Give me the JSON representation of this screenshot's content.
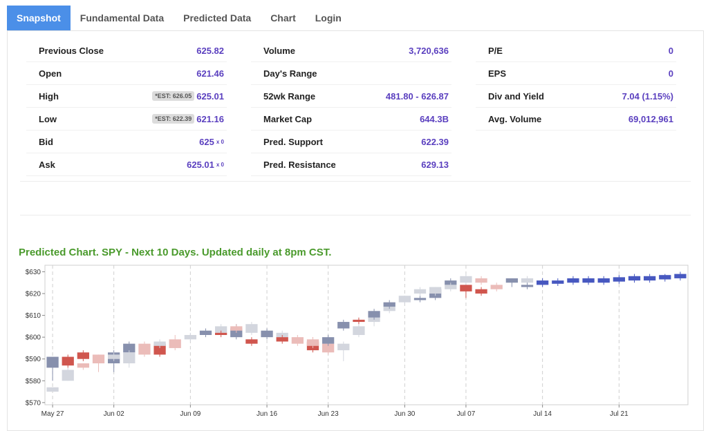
{
  "tabs": [
    {
      "label": "Snapshot",
      "active": true
    },
    {
      "label": "Fundamental Data",
      "active": false
    },
    {
      "label": "Predicted Data",
      "active": false
    },
    {
      "label": "Chart",
      "active": false
    },
    {
      "label": "Login",
      "active": false
    }
  ],
  "stats": {
    "col1": [
      {
        "label": "Previous Close",
        "value": "625.82"
      },
      {
        "label": "Open",
        "value": "621.46"
      },
      {
        "label": "High",
        "value": "625.01",
        "est": "*EST: 626.05"
      },
      {
        "label": "Low",
        "value": "621.16",
        "est": "*EST: 622.39"
      },
      {
        "label": "Bid",
        "value": "625",
        "mult": "x 0"
      },
      {
        "label": "Ask",
        "value": "625.01",
        "mult": "x 0"
      }
    ],
    "col2": [
      {
        "label": "Volume",
        "value": "3,720,636"
      },
      {
        "label": "Day's Range",
        "value": ""
      },
      {
        "label": "52wk Range",
        "value": "481.80 - 626.87"
      },
      {
        "label": "Market Cap",
        "value": "644.3B"
      },
      {
        "label": "Pred. Support",
        "value": "622.39"
      },
      {
        "label": "Pred. Resistance",
        "value": "629.13"
      }
    ],
    "col3": [
      {
        "label": "P/E",
        "value": "0"
      },
      {
        "label": "EPS",
        "value": "0"
      },
      {
        "label": "Div and Yield",
        "value": "7.04 (1.15%)"
      },
      {
        "label": "Avg. Volume",
        "value": "69,012,961"
      }
    ]
  },
  "chart_title": "Predicted Chart. SPY - Next 10 Days. Updated daily at 8pm CST.",
  "chart_data": {
    "type": "candlestick",
    "y_ticks": [
      "$630",
      "$620",
      "$610",
      "$600",
      "$590",
      "$580",
      "$570"
    ],
    "y_tick_values": [
      630,
      620,
      610,
      600,
      590,
      580,
      570
    ],
    "ylim": [
      569,
      633
    ],
    "x_tick_labels": [
      "May 27",
      "Jun 02",
      "Jun 09",
      "Jun 16",
      "Jun 23",
      "Jun 30",
      "Jul 07",
      "Jul 14",
      "Jul 21"
    ],
    "x_tick_index": [
      0,
      4,
      9,
      14,
      18,
      23,
      27,
      32,
      37
    ],
    "total_slots": 42,
    "colors": {
      "actual_up": "#8790ad",
      "actual_down": "#d0564e",
      "pred_up": "#d3d6de",
      "pred_down": "#ebbcb9",
      "forecast": "#4758c0"
    },
    "candles": [
      {
        "i": 0,
        "kind": "pred",
        "o": 575,
        "c": 577,
        "h": 577,
        "l": 575
      },
      {
        "i": 0,
        "kind": "actual",
        "o": 586,
        "c": 591,
        "h": 591,
        "l": 580
      },
      {
        "i": 1,
        "kind": "pred",
        "o": 580,
        "c": 585,
        "h": 586,
        "l": 580
      },
      {
        "i": 1,
        "kind": "actual",
        "o": 591,
        "c": 587,
        "h": 592,
        "l": 586
      },
      {
        "i": 2,
        "kind": "pred",
        "o": 588,
        "c": 586,
        "h": 588,
        "l": 585
      },
      {
        "i": 2,
        "kind": "actual",
        "o": 593,
        "c": 590,
        "h": 594,
        "l": 589
      },
      {
        "i": 3,
        "kind": "pred",
        "o": 592,
        "c": 588,
        "h": 592,
        "l": 584
      },
      {
        "i": 4,
        "kind": "actual",
        "o": 588,
        "c": 593,
        "h": 594,
        "l": 584
      },
      {
        "i": 4,
        "kind": "pred",
        "o": 590,
        "c": 592,
        "h": 593,
        "l": 589
      },
      {
        "i": 5,
        "kind": "actual",
        "o": 593,
        "c": 597,
        "h": 598,
        "l": 592
      },
      {
        "i": 5,
        "kind": "pred",
        "o": 588,
        "c": 593,
        "h": 594,
        "l": 586
      },
      {
        "i": 6,
        "kind": "pred",
        "o": 597,
        "c": 592,
        "h": 598,
        "l": 591
      },
      {
        "i": 7,
        "kind": "actual",
        "o": 597,
        "c": 592,
        "h": 598,
        "l": 591
      },
      {
        "i": 7,
        "kind": "pred",
        "o": 596,
        "c": 598,
        "h": 599,
        "l": 595
      },
      {
        "i": 8,
        "kind": "pred",
        "o": 599,
        "c": 595,
        "h": 601,
        "l": 594
      },
      {
        "i": 9,
        "kind": "pred",
        "o": 599,
        "c": 601,
        "h": 602,
        "l": 598
      },
      {
        "i": 10,
        "kind": "actual",
        "o": 601,
        "c": 603,
        "h": 604,
        "l": 600
      },
      {
        "i": 11,
        "kind": "pred",
        "o": 602,
        "c": 605,
        "h": 606,
        "l": 601
      },
      {
        "i": 11,
        "kind": "actual",
        "o": 602,
        "c": 601,
        "h": 603,
        "l": 600
      },
      {
        "i": 12,
        "kind": "actual",
        "o": 600,
        "c": 604,
        "h": 606,
        "l": 599
      },
      {
        "i": 12,
        "kind": "pred",
        "o": 605,
        "c": 603,
        "h": 606,
        "l": 602
      },
      {
        "i": 13,
        "kind": "pred",
        "o": 602,
        "c": 606,
        "h": 607,
        "l": 601
      },
      {
        "i": 13,
        "kind": "actual",
        "o": 599,
        "c": 597,
        "h": 600,
        "l": 596
      },
      {
        "i": 14,
        "kind": "actual",
        "o": 600,
        "c": 603,
        "h": 604,
        "l": 599
      },
      {
        "i": 15,
        "kind": "pred",
        "o": 600,
        "c": 602,
        "h": 603,
        "l": 599
      },
      {
        "i": 15,
        "kind": "actual",
        "o": 600,
        "c": 598,
        "h": 601,
        "l": 597
      },
      {
        "i": 16,
        "kind": "pred",
        "o": 600,
        "c": 597,
        "h": 601,
        "l": 596
      },
      {
        "i": 17,
        "kind": "actual",
        "o": 598,
        "c": 594,
        "h": 600,
        "l": 593
      },
      {
        "i": 17,
        "kind": "pred",
        "o": 599,
        "c": 596,
        "h": 600,
        "l": 595
      },
      {
        "i": 18,
        "kind": "pred",
        "o": 597,
        "c": 593,
        "h": 598,
        "l": 592
      },
      {
        "i": 18,
        "kind": "actual",
        "o": 597,
        "c": 600,
        "h": 601,
        "l": 596
      },
      {
        "i": 19,
        "kind": "pred",
        "o": 594,
        "c": 597,
        "h": 598,
        "l": 589
      },
      {
        "i": 19,
        "kind": "actual",
        "o": 604,
        "c": 607,
        "h": 608,
        "l": 603
      },
      {
        "i": 20,
        "kind": "pred",
        "o": 601,
        "c": 605,
        "h": 606,
        "l": 600
      },
      {
        "i": 20,
        "kind": "actual",
        "o": 608,
        "c": 607,
        "h": 609,
        "l": 606
      },
      {
        "i": 21,
        "kind": "pred",
        "o": 607,
        "c": 609,
        "h": 610,
        "l": 605
      },
      {
        "i": 21,
        "kind": "actual",
        "o": 609,
        "c": 612,
        "h": 613,
        "l": 608
      },
      {
        "i": 22,
        "kind": "pred",
        "o": 612,
        "c": 614,
        "h": 615,
        "l": 611
      },
      {
        "i": 22,
        "kind": "actual",
        "o": 614,
        "c": 616,
        "h": 617,
        "l": 613
      },
      {
        "i": 23,
        "kind": "pred",
        "o": 616,
        "c": 619,
        "h": 619,
        "l": 615
      },
      {
        "i": 24,
        "kind": "actual",
        "o": 617,
        "c": 618,
        "h": 619,
        "l": 616
      },
      {
        "i": 24,
        "kind": "pred",
        "o": 620,
        "c": 622,
        "h": 623,
        "l": 619
      },
      {
        "i": 25,
        "kind": "actual",
        "o": 618,
        "c": 622,
        "h": 622,
        "l": 617
      },
      {
        "i": 25,
        "kind": "pred",
        "o": 620,
        "c": 623,
        "h": 623,
        "l": 619
      },
      {
        "i": 26,
        "kind": "actual",
        "o": 624,
        "c": 626,
        "h": 627,
        "l": 622
      },
      {
        "i": 26,
        "kind": "pred",
        "o": 622,
        "c": 624,
        "h": 625,
        "l": 621
      },
      {
        "i": 27,
        "kind": "pred",
        "o": 625,
        "c": 628,
        "h": 629,
        "l": 624
      },
      {
        "i": 27,
        "kind": "actual",
        "o": 624,
        "c": 621,
        "h": 624,
        "l": 618
      },
      {
        "i": 28,
        "kind": "pred",
        "o": 627,
        "c": 625,
        "h": 628,
        "l": 624
      },
      {
        "i": 28,
        "kind": "actual",
        "o": 622,
        "c": 620,
        "h": 623,
        "l": 619
      },
      {
        "i": 29,
        "kind": "pred",
        "o": 624,
        "c": 622,
        "h": 625,
        "l": 621
      },
      {
        "i": 30,
        "kind": "actual",
        "o": 625,
        "c": 627,
        "h": 627,
        "l": 623
      },
      {
        "i": 31,
        "kind": "pred",
        "o": 625,
        "c": 627,
        "h": 628,
        "l": 624
      },
      {
        "i": 31,
        "kind": "actual",
        "o": 623,
        "c": 624,
        "h": 625,
        "l": 622
      },
      {
        "i": 32,
        "kind": "forecast",
        "o": 624,
        "c": 626,
        "h": 627,
        "l": 623
      },
      {
        "i": 33,
        "kind": "forecast",
        "o": 624.5,
        "c": 626,
        "h": 627,
        "l": 623.5
      },
      {
        "i": 34,
        "kind": "forecast",
        "o": 625,
        "c": 627,
        "h": 628,
        "l": 624
      },
      {
        "i": 35,
        "kind": "forecast",
        "o": 625,
        "c": 627,
        "h": 628,
        "l": 624
      },
      {
        "i": 36,
        "kind": "forecast",
        "o": 625,
        "c": 627,
        "h": 628,
        "l": 624
      },
      {
        "i": 37,
        "kind": "forecast",
        "o": 625.5,
        "c": 627.5,
        "h": 628.5,
        "l": 624.5
      },
      {
        "i": 38,
        "kind": "forecast",
        "o": 626,
        "c": 628,
        "h": 629,
        "l": 625
      },
      {
        "i": 39,
        "kind": "forecast",
        "o": 626,
        "c": 628,
        "h": 629,
        "l": 625
      },
      {
        "i": 40,
        "kind": "forecast",
        "o": 626.5,
        "c": 628.5,
        "h": 629,
        "l": 625.5
      },
      {
        "i": 41,
        "kind": "forecast",
        "o": 627,
        "c": 629,
        "h": 630,
        "l": 626
      }
    ]
  }
}
